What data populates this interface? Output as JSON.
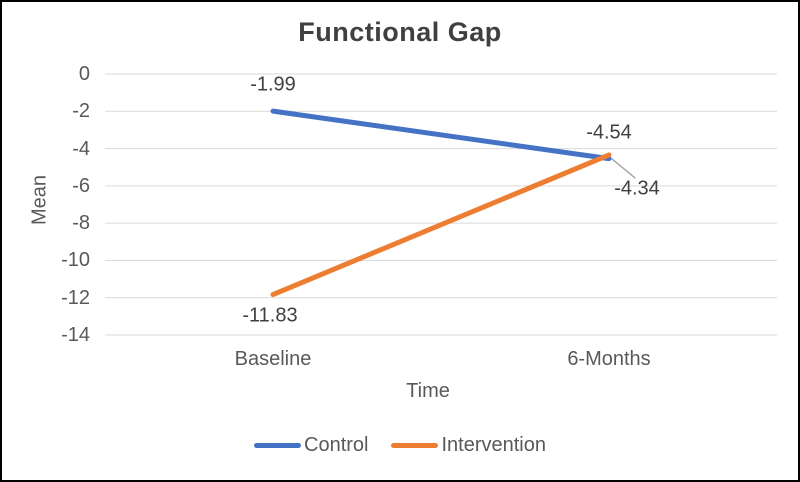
{
  "chart_data": {
    "type": "line",
    "title": "Functional Gap",
    "xlabel": "Time",
    "ylabel": "Mean",
    "categories": [
      "Baseline",
      "6-Months"
    ],
    "series": [
      {
        "name": "Control",
        "color": "#4472C4",
        "values": [
          -1.99,
          -4.54
        ],
        "data_labels": [
          "-1.99",
          "-4.54"
        ],
        "label_placements": [
          "above",
          "above"
        ]
      },
      {
        "name": "Intervention",
        "color": "#ED7D31",
        "values": [
          -11.83,
          -4.34
        ],
        "data_labels": [
          "-11.83",
          "-4.34"
        ],
        "label_placements": [
          "below",
          "leader"
        ]
      }
    ],
    "ylim": [
      -14,
      0
    ],
    "ytick_interval": 2,
    "yticks": [
      "0",
      "-2",
      "-4",
      "-6",
      "-8",
      "-10",
      "-12",
      "-14"
    ],
    "grid": true,
    "legend_position": "bottom",
    "gridline_color": "#D9D9D9",
    "leader_line_color": "#A6A6A6",
    "title_color": "#404040",
    "axis_text_color": "#595959",
    "data_label_color": "#404040",
    "background_color": "#FFFFFF",
    "border_color": "#000000"
  }
}
